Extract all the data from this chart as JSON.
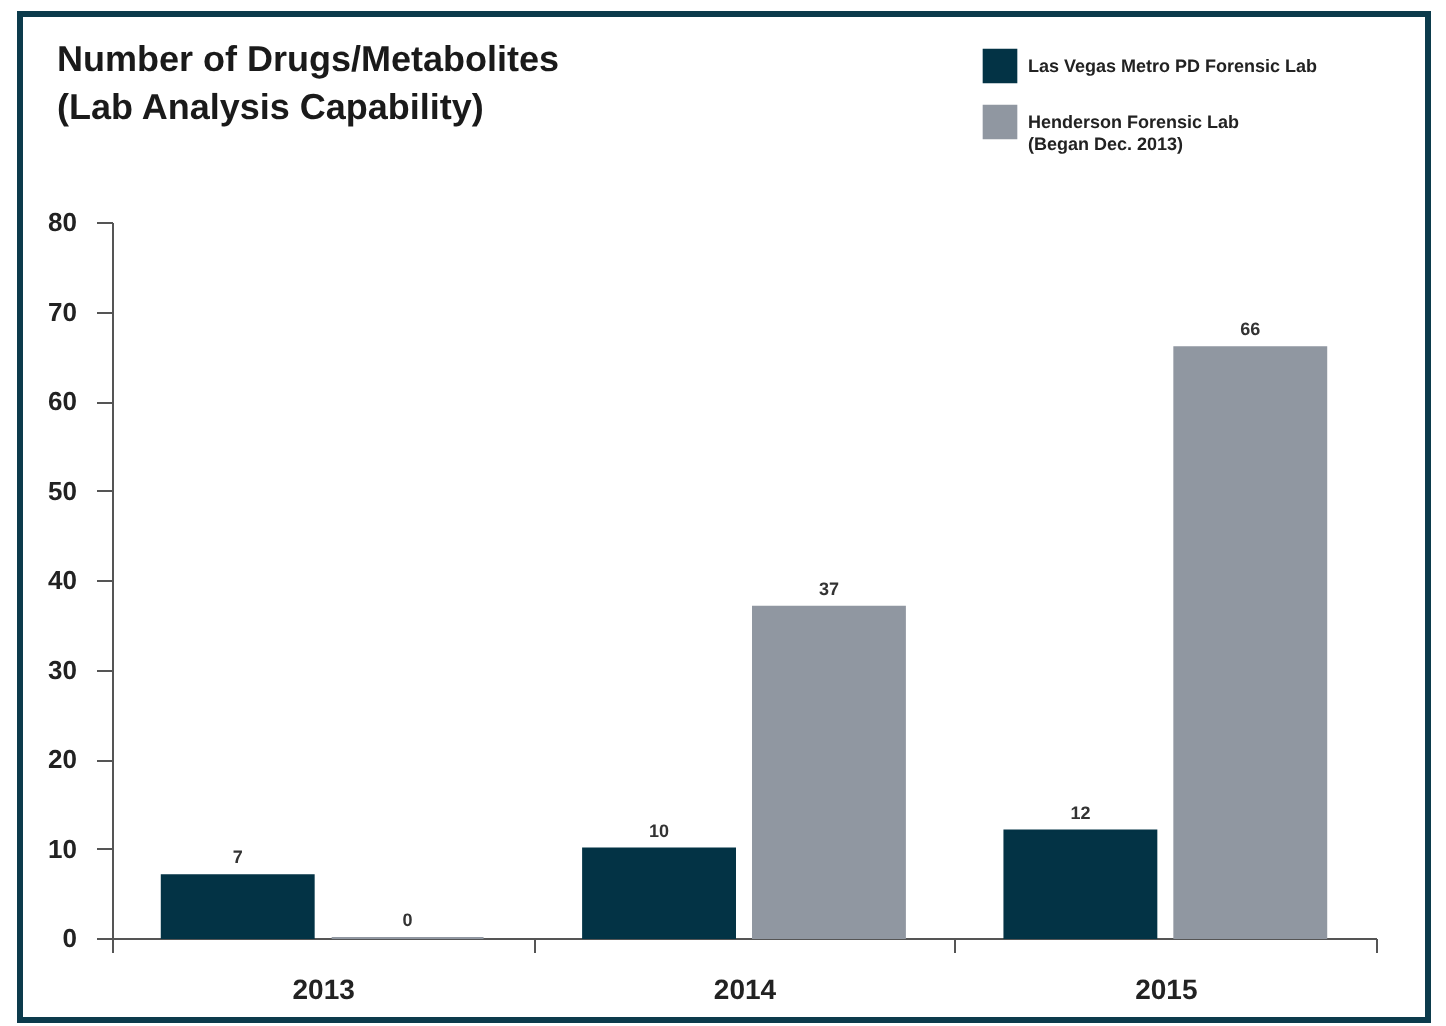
{
  "chart_data": {
    "type": "bar",
    "title": "Number of Drugs/Metabolites\n(Lab Analysis Capability)",
    "categories": [
      "2013",
      "2014",
      "2015"
    ],
    "series": [
      {
        "name": "Las Vegas Metro PD Forensic Lab",
        "color": "#033345",
        "values": [
          7,
          10,
          12
        ]
      },
      {
        "name": "Henderson Forensic Lab\n(Began Dec. 2013)",
        "color": "#9097a1",
        "values": [
          0,
          37,
          66
        ]
      }
    ],
    "ylim": [
      0,
      80
    ],
    "yticks": [
      0,
      10,
      20,
      30,
      40,
      50,
      60,
      70,
      80
    ],
    "grid": false,
    "legend": "top right",
    "data_labels": true
  }
}
